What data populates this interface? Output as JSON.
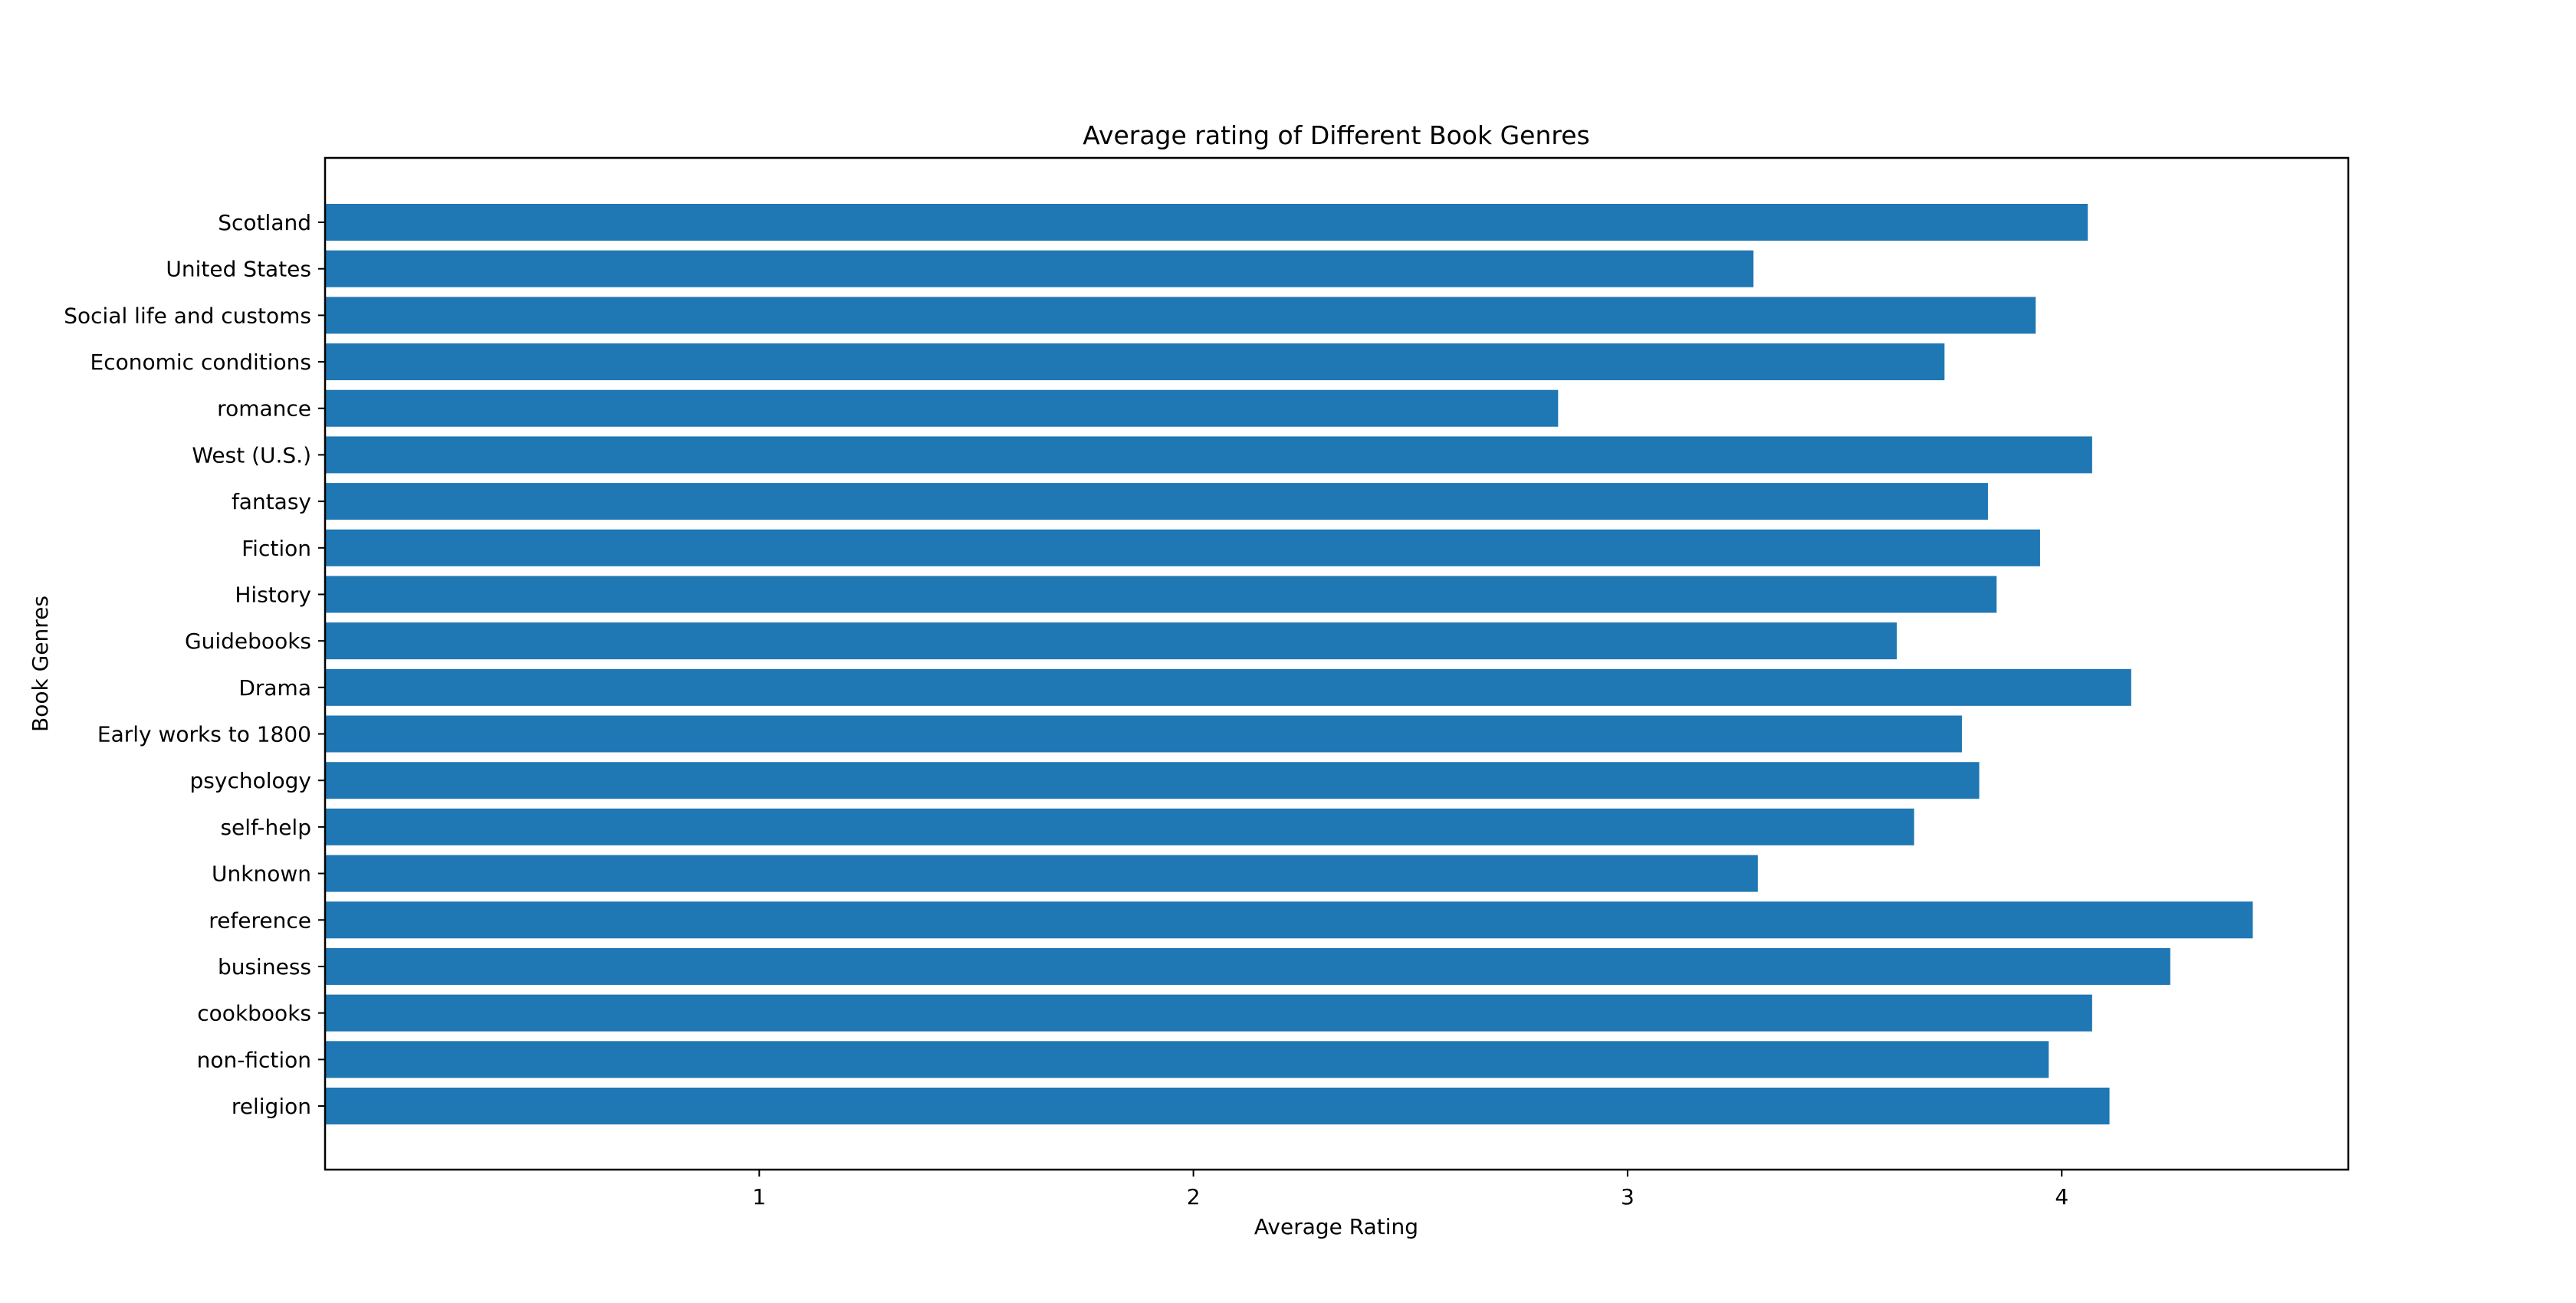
{
  "chart_data": {
    "type": "bar",
    "orientation": "horizontal",
    "title": "Average rating of Different Book Genres",
    "xlabel": "Average Rating",
    "ylabel": "Book Genres",
    "categories": [
      "Scotland",
      "United States",
      "Social life and customs",
      "Economic conditions",
      "romance",
      "West (U.S.)",
      "fantasy",
      "Fiction",
      "History",
      "Guidebooks",
      "Drama",
      "Early works to 1800",
      "psychology",
      "self-help",
      "Unknown",
      "reference",
      "business",
      "cookbooks",
      "non-fiction",
      "religion"
    ],
    "values": [
      4.06,
      3.29,
      3.94,
      3.73,
      2.84,
      4.07,
      3.83,
      3.95,
      3.85,
      3.62,
      4.16,
      3.77,
      3.81,
      3.66,
      3.3,
      4.44,
      4.25,
      4.07,
      3.97,
      4.11
    ],
    "xticks": [
      1,
      2,
      3,
      4
    ],
    "xlim": [
      0,
      4.66
    ],
    "bar_color": "#1f77b4",
    "grid": false,
    "legend": "none"
  }
}
